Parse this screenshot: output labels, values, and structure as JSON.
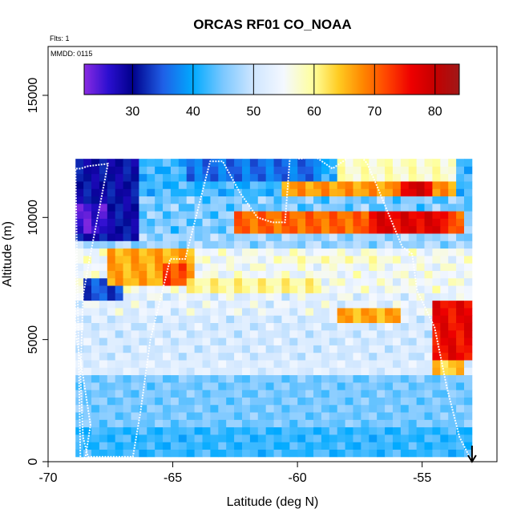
{
  "chart_data": {
    "type": "heatmap",
    "title": "ORCAS RF01 CO_NOAA",
    "xlabel": "Latitude (deg N)",
    "ylabel": "Altitude (m)",
    "xlim": [
      -70,
      -52
    ],
    "ylim": [
      0,
      17000
    ],
    "x_ticks": [
      -70,
      -65,
      -60,
      -55
    ],
    "x_tick_labels": [
      "-70",
      "-65",
      "-60",
      "-55"
    ],
    "y_ticks": [
      0,
      5000,
      10000,
      15000
    ],
    "y_tick_labels": [
      "0",
      "5000",
      "10000",
      "15000"
    ],
    "annotations": {
      "flights": "Flts: 1",
      "date": "MMDD: 0115"
    },
    "colorbar": {
      "min": 22,
      "max": 84,
      "ticks": [
        30,
        40,
        50,
        60,
        70,
        80
      ],
      "tick_labels": [
        "30",
        "40",
        "50",
        "60",
        "70",
        "80"
      ],
      "divisions": [
        22,
        30,
        40,
        50,
        60,
        70,
        80,
        84
      ],
      "stops": [
        {
          "value": 22,
          "color": "#8a2be2"
        },
        {
          "value": 26,
          "color": "#2b0fd0"
        },
        {
          "value": 30,
          "color": "#00008b"
        },
        {
          "value": 35,
          "color": "#1f5fe6"
        },
        {
          "value": 40,
          "color": "#00aaff"
        },
        {
          "value": 45,
          "color": "#7cc8ff"
        },
        {
          "value": 50,
          "color": "#cfe6ff"
        },
        {
          "value": 55,
          "color": "#f4f8ff"
        },
        {
          "value": 60,
          "color": "#ffff99"
        },
        {
          "value": 64,
          "color": "#ffcc22"
        },
        {
          "value": 68,
          "color": "#ff8800"
        },
        {
          "value": 72,
          "color": "#ff4400"
        },
        {
          "value": 76,
          "color": "#ee0000"
        },
        {
          "value": 80,
          "color": "#c40000"
        },
        {
          "value": 84,
          "color": "#a01818"
        }
      ]
    },
    "grid": {
      "lat_start": -68.9,
      "lat_end": -53.0,
      "n_cols": 50,
      "alt_start": 200,
      "alt_end": 12400,
      "n_rows": 40,
      "layers": [
        {
          "alt_min": 0,
          "alt_max": 1500,
          "value": 42,
          "amp": 3
        },
        {
          "alt_min": 1500,
          "alt_max": 3500,
          "value": 45,
          "amp": 3
        },
        {
          "alt_min": 3500,
          "alt_max": 4300,
          "value": 52,
          "amp": 3
        },
        {
          "alt_min": 4300,
          "alt_max": 6000,
          "value": 51,
          "amp": 4
        },
        {
          "alt_min": 6000,
          "alt_max": 6800,
          "value": 53,
          "amp": 5
        },
        {
          "alt_min": 6800,
          "alt_max": 8700,
          "value": 55,
          "amp": 5
        },
        {
          "alt_min": 8700,
          "alt_max": 9500,
          "value": 47,
          "amp": 4
        },
        {
          "alt_min": 9500,
          "alt_max": 11000,
          "value": 45,
          "amp": 5
        },
        {
          "alt_min": 11000,
          "alt_max": 13000,
          "value": 42,
          "amp": 4
        }
      ],
      "features": [
        {
          "lat_min": -69,
          "lat_max": -66.5,
          "alt_min": 9000,
          "alt_max": 12500,
          "value": 30
        },
        {
          "lat_min": -69,
          "lat_max": -67.5,
          "alt_min": 9500,
          "alt_max": 10500,
          "value": 25
        },
        {
          "lat_min": -68.5,
          "lat_max": -67,
          "alt_min": 6500,
          "alt_max": 7500,
          "value": 34
        },
        {
          "lat_min": -67.5,
          "lat_max": -64,
          "alt_min": 7200,
          "alt_max": 8600,
          "value": 66
        },
        {
          "lat_min": -65.5,
          "lat_max": -64.5,
          "alt_min": 7200,
          "alt_max": 8200,
          "value": 72
        },
        {
          "lat_min": -64.5,
          "lat_max": -59,
          "alt_min": 6800,
          "alt_max": 7600,
          "value": 60
        },
        {
          "lat_min": -58.5,
          "lat_max": -56,
          "alt_min": 5800,
          "alt_max": 6400,
          "value": 66
        },
        {
          "lat_min": -62.5,
          "lat_max": -53.2,
          "alt_min": 9500,
          "alt_max": 10300,
          "value": 70
        },
        {
          "lat_min": -57,
          "lat_max": -54,
          "alt_min": 9500,
          "alt_max": 10200,
          "value": 77
        },
        {
          "lat_min": -60.5,
          "lat_max": -53.5,
          "alt_min": 10900,
          "alt_max": 11600,
          "value": 67
        },
        {
          "lat_min": -56,
          "lat_max": -54.5,
          "alt_min": 10900,
          "alt_max": 11400,
          "value": 78
        },
        {
          "lat_min": -58.5,
          "lat_max": -53.5,
          "alt_min": 11600,
          "alt_max": 12400,
          "value": 58
        },
        {
          "lat_min": -64.5,
          "lat_max": -59,
          "alt_min": 11500,
          "alt_max": 12500,
          "value": 36
        },
        {
          "lat_min": -54.5,
          "lat_max": -52.9,
          "alt_min": 4300,
          "alt_max": 6500,
          "value": 76
        },
        {
          "lat_min": -54.5,
          "lat_max": -53.2,
          "alt_min": 3500,
          "alt_max": 4300,
          "value": 64
        },
        {
          "lat_min": -60.5,
          "lat_max": -56.5,
          "alt_min": 8000,
          "alt_max": 8500,
          "value": 58
        }
      ]
    },
    "flight_track": {
      "lat": [
        -68.9,
        -68.9,
        -68.6,
        -68.3,
        -68.5,
        -68.7,
        -68.9,
        -68.7,
        -68.4,
        -67.6,
        -68.3,
        -68.6,
        -68.7,
        -68.6,
        -68.4,
        -66.6,
        -66.3,
        -65.9,
        -65.1,
        -64.5,
        -63.5,
        -63.0,
        -62.3,
        -61.6,
        -61.0,
        -60.5,
        -60.3,
        -59.9,
        -59.3,
        -58.6,
        -57.6,
        -57.2,
        -56.9,
        -55.8,
        -55.4,
        -55.2,
        -54.5,
        -54.0,
        -53.5,
        -53.3,
        -53.1,
        -53.0
      ],
      "alt": [
        8500,
        5300,
        3500,
        1500,
        200,
        0,
        12000,
        12000,
        12100,
        12200,
        8500,
        6800,
        3500,
        1000,
        200,
        200,
        2000,
        5000,
        8300,
        8300,
        12300,
        12300,
        11000,
        10000,
        9800,
        9800,
        12500,
        12400,
        12500,
        12000,
        12700,
        12200,
        11500,
        8800,
        8500,
        7000,
        5500,
        3000,
        1000,
        600,
        200,
        0
      ],
      "color": "#ffffff"
    }
  }
}
